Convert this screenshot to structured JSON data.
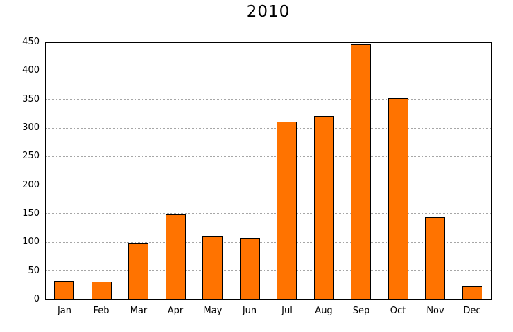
{
  "page": {
    "background": "#ffffff"
  },
  "chart_data": {
    "type": "bar",
    "title": "2010",
    "categories": [
      "Jan",
      "Feb",
      "Mar",
      "Apr",
      "May",
      "Jun",
      "Jul",
      "Aug",
      "Sep",
      "Oct",
      "Nov",
      "Dec"
    ],
    "values": [
      33,
      31,
      98,
      149,
      112,
      108,
      312,
      321,
      448,
      353,
      144,
      23
    ],
    "xlabel": "",
    "ylabel": "",
    "ylim": [
      0,
      450
    ],
    "yticks": [
      0,
      50,
      100,
      150,
      200,
      250,
      300,
      350,
      400,
      450
    ],
    "grid": "horizontal-dotted",
    "legend": "none",
    "colors": {
      "bar_fill": "#ff7300",
      "bar_border": "#000000",
      "gridline": "#a6a6a6",
      "axis_frame": "#000000",
      "text": "#000000"
    }
  }
}
